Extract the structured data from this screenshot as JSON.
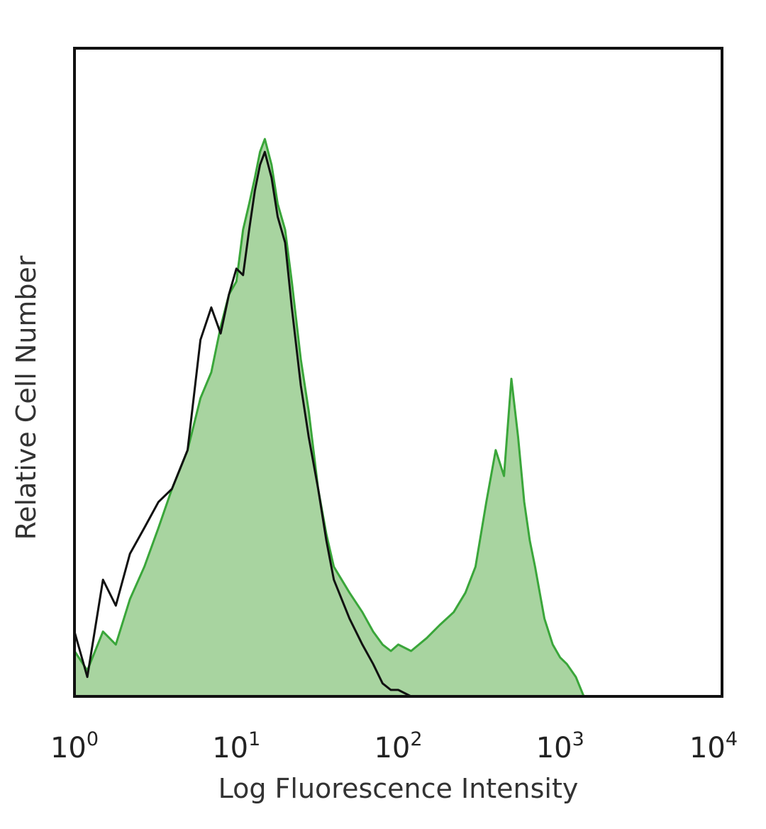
{
  "chart_data": {
    "type": "area",
    "title": "",
    "xlabel": "Log Fluorescence Intensity",
    "ylabel": "Relative Cell Number",
    "x_scale": "log",
    "xlim": [
      1,
      10000
    ],
    "ylim": [
      0,
      100
    ],
    "grid": false,
    "legend": "none",
    "x_ticks": [
      {
        "value": 1,
        "base": "10",
        "exp": "0"
      },
      {
        "value": 10,
        "base": "10",
        "exp": "1"
      },
      {
        "value": 100,
        "base": "10",
        "exp": "2"
      },
      {
        "value": 1000,
        "base": "10",
        "exp": "3"
      },
      {
        "value": 10000,
        "base": "10",
        "exp": "4"
      }
    ],
    "series": [
      {
        "style": "filled",
        "fill_color": "#a8d4a0",
        "line_color": "#3aa63a",
        "x": [
          1.0,
          1.2,
          1.5,
          1.8,
          2.2,
          2.7,
          3.3,
          4.0,
          5.0,
          6.0,
          7.0,
          8.0,
          9.0,
          10.0,
          11.0,
          12.0,
          13.0,
          14.0,
          15.0,
          16.5,
          18.0,
          20.0,
          22.0,
          25.0,
          28.0,
          32.0,
          36.0,
          40.0,
          50.0,
          60.0,
          70.0,
          80.0,
          90.0,
          100.0,
          120.0,
          150.0,
          180.0,
          220.0,
          260.0,
          300.0,
          350.0,
          400.0,
          450.0,
          500.0,
          550.0,
          600.0,
          650.0,
          700.0,
          800.0,
          900.0,
          1000.0,
          1100.0,
          1250.0,
          1400.0
        ],
        "y": [
          7,
          4,
          10,
          8,
          15,
          20,
          26,
          32,
          38,
          46,
          50,
          57,
          62,
          64,
          72,
          76,
          80,
          84,
          86,
          82,
          76,
          72,
          64,
          52,
          44,
          32,
          25,
          20,
          16,
          13,
          10,
          8,
          7,
          8,
          7,
          9,
          11,
          13,
          16,
          20,
          30,
          38,
          34,
          49,
          40,
          30,
          24,
          20,
          12,
          8,
          6,
          5,
          3,
          0
        ]
      },
      {
        "style": "line",
        "line_color": "#111111",
        "x": [
          1.0,
          1.2,
          1.5,
          1.8,
          2.2,
          2.7,
          3.3,
          4.0,
          5.0,
          6.0,
          7.0,
          8.0,
          9.0,
          10.0,
          11.0,
          12.0,
          13.0,
          14.0,
          15.0,
          16.5,
          18.0,
          20.0,
          22.0,
          25.0,
          28.0,
          32.0,
          36.0,
          40.0,
          50.0,
          60.0,
          70.0,
          80.0,
          90.0,
          100.0,
          120.0,
          150.0
        ],
        "y": [
          10,
          3,
          18,
          14,
          22,
          26,
          30,
          32,
          38,
          55,
          60,
          56,
          62,
          66,
          65,
          72,
          78,
          82,
          84,
          80,
          74,
          70,
          60,
          48,
          40,
          32,
          24,
          18,
          12,
          8,
          5,
          2,
          1,
          1,
          0,
          0
        ]
      }
    ]
  }
}
